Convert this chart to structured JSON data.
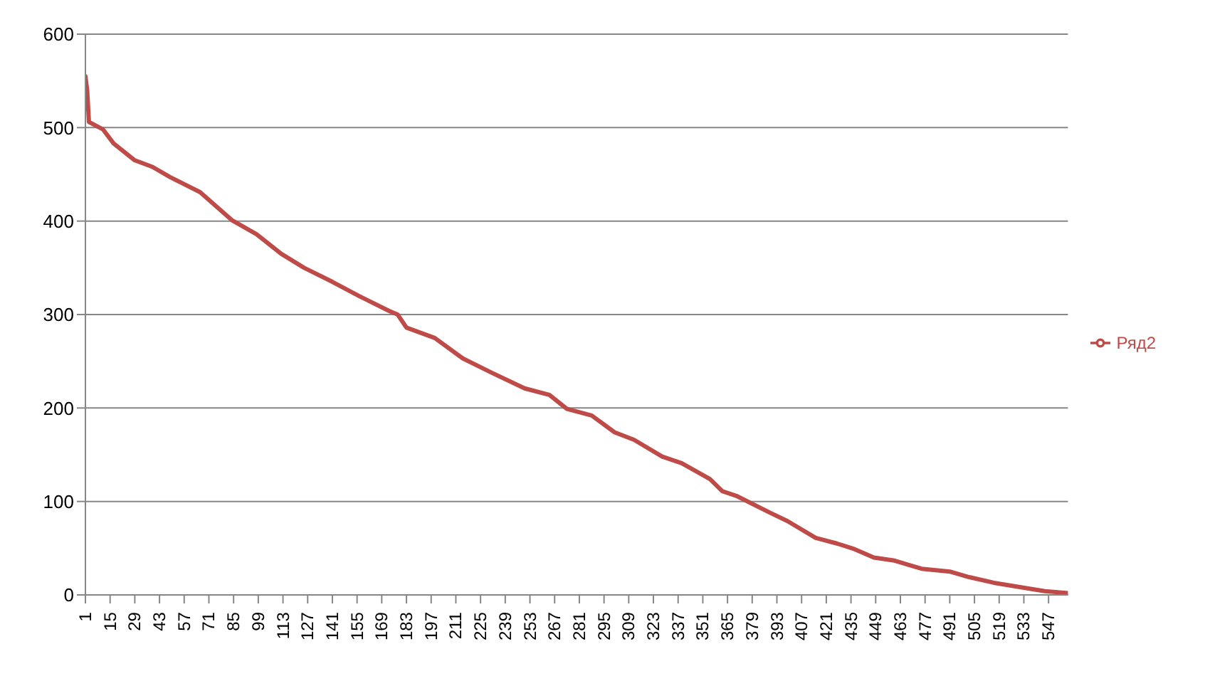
{
  "chart_data": {
    "type": "line",
    "x": [
      1,
      2,
      3,
      11,
      17,
      29,
      39,
      49,
      66,
      84,
      98,
      112,
      125,
      141,
      157,
      173,
      178,
      183,
      199,
      215,
      231,
      250,
      264,
      274,
      288,
      301,
      312,
      328,
      339,
      355,
      362,
      370,
      389,
      399,
      415,
      427,
      437,
      448,
      459,
      475,
      491,
      502,
      516,
      535,
      545,
      558
    ],
    "series": [
      {
        "name": "Ряд2",
        "color": "#be4b48",
        "values": [
          555,
          540,
          506,
          498,
          483,
          465,
          458,
          447,
          431,
          401,
          386,
          365,
          350,
          335,
          319,
          304,
          300,
          286,
          275,
          253,
          238,
          221,
          214,
          199,
          192,
          174,
          166,
          148,
          141,
          124,
          111,
          106,
          88,
          79,
          61,
          55,
          49,
          40,
          37,
          28,
          25,
          19,
          13,
          7,
          4,
          2
        ]
      }
    ],
    "xlim": [
      1,
      558
    ],
    "xticks": [
      1,
      15,
      29,
      43,
      57,
      71,
      85,
      99,
      113,
      127,
      141,
      155,
      169,
      183,
      197,
      211,
      225,
      239,
      253,
      267,
      281,
      295,
      309,
      323,
      337,
      351,
      365,
      379,
      393,
      407,
      421,
      435,
      449,
      463,
      477,
      491,
      505,
      519,
      533,
      547
    ],
    "ylim": [
      0,
      600
    ],
    "yticks": [
      0,
      100,
      200,
      300,
      400,
      500,
      600
    ],
    "grid": "y",
    "legend": "right",
    "marker": "none",
    "line_style": "solid"
  }
}
